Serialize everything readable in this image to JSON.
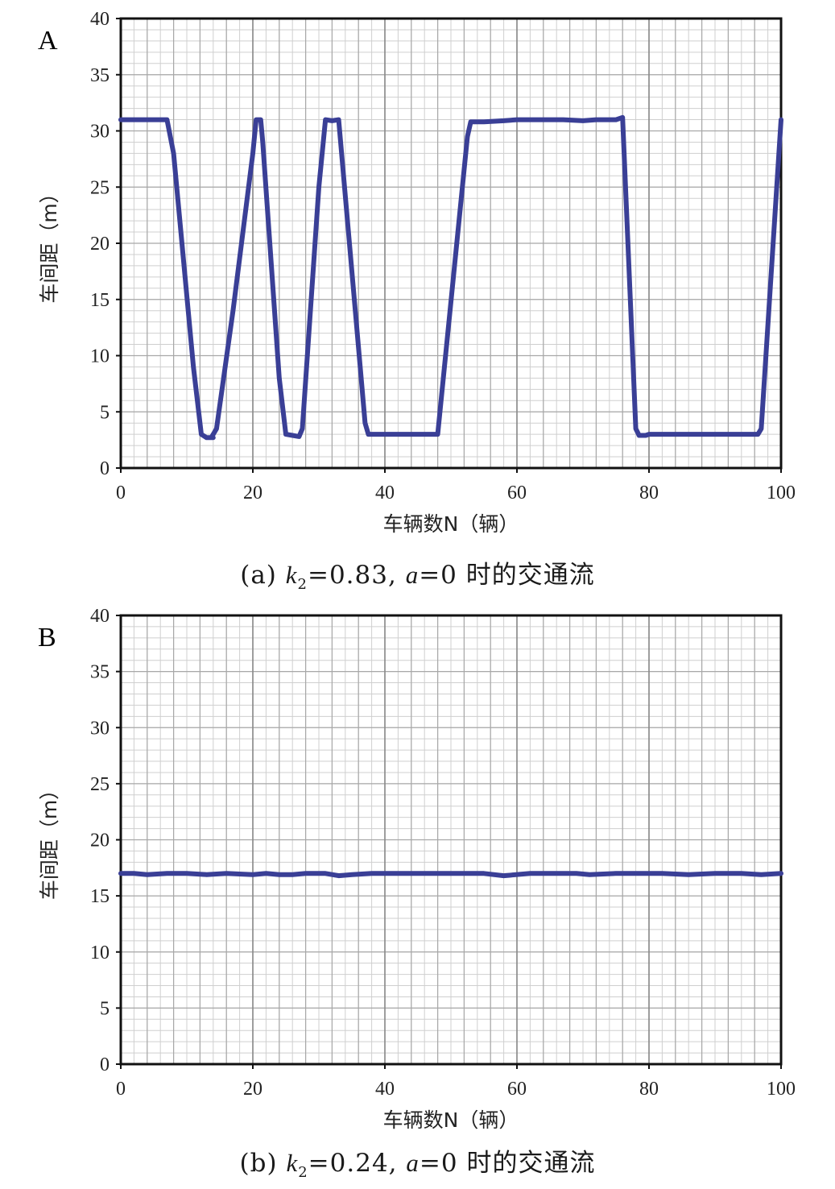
{
  "figures": [
    {
      "panel": "A",
      "caption": {
        "prefix": "(a)",
        "k_symbol": "k",
        "k_sub": "2",
        "k_value": "=0.83,",
        "a_symbol": "a",
        "a_value": "=0",
        "suffix": "时的交通流"
      }
    },
    {
      "panel": "B",
      "caption": {
        "prefix": "(b)",
        "k_symbol": "k",
        "k_sub": "2",
        "k_value": "=0.24,",
        "a_symbol": "a",
        "a_value": "=0",
        "suffix": "时的交通流"
      }
    }
  ],
  "chart_data": [
    {
      "type": "line",
      "title": "",
      "xlabel": "车辆数N（辆）",
      "ylabel": "车间距（m）",
      "xlim": [
        0,
        100
      ],
      "ylim": [
        0,
        40
      ],
      "xticks": [
        0,
        20,
        40,
        60,
        80,
        100
      ],
      "yticks": [
        0,
        5,
        10,
        15,
        20,
        25,
        30,
        35,
        40
      ],
      "grid": true,
      "color": "#3a3f96",
      "series": [
        {
          "x": [
            0,
            6.5,
            7,
            8,
            11,
            12.2,
            13,
            14,
            13.8,
            14.5,
            17,
            20,
            20.5,
            21.2,
            21.5,
            24,
            25,
            26,
            27,
            27.5,
            30,
            31,
            32,
            33,
            37,
            37.5,
            38.5,
            40,
            45,
            47,
            48,
            52.5,
            53,
            54,
            55,
            58,
            60,
            65,
            67,
            70,
            72,
            75,
            76,
            78,
            78.5,
            79.5,
            80,
            85,
            90,
            95,
            96.5,
            97,
            100
          ],
          "y": [
            31,
            31,
            31,
            28,
            9,
            3,
            2.7,
            2.7,
            2.8,
            3.5,
            14,
            28,
            31,
            31,
            29,
            8,
            3,
            2.9,
            2.8,
            3.5,
            25,
            31,
            30.9,
            31,
            4,
            3,
            3,
            3,
            3,
            3,
            3,
            29.5,
            30.8,
            30.8,
            30.8,
            30.9,
            31,
            31,
            31,
            30.9,
            31,
            31,
            31.2,
            3.5,
            2.9,
            2.9,
            3,
            3,
            3,
            3,
            3,
            3.5,
            31
          ]
        }
      ]
    },
    {
      "type": "line",
      "title": "",
      "xlabel": "车辆数N（辆）",
      "ylabel": "车间距（m）",
      "xlim": [
        0,
        100
      ],
      "ylim": [
        0,
        40
      ],
      "xticks": [
        0,
        20,
        40,
        60,
        80,
        100
      ],
      "yticks": [
        0,
        5,
        10,
        15,
        20,
        25,
        30,
        35,
        40
      ],
      "grid": true,
      "color": "#3a3f96",
      "series": [
        {
          "x": [
            0,
            2,
            4,
            7,
            10,
            13,
            16,
            20,
            22,
            24,
            26,
            28,
            31,
            33,
            35,
            38,
            45,
            55,
            58,
            62,
            66,
            69,
            71,
            75,
            82,
            86,
            90,
            94,
            97,
            100
          ],
          "y": [
            17,
            17,
            16.9,
            17,
            17,
            16.9,
            17,
            16.9,
            17,
            16.9,
            16.9,
            17,
            17,
            16.8,
            16.9,
            17,
            17,
            17,
            16.8,
            17,
            17,
            17,
            16.9,
            17,
            17,
            16.9,
            17,
            17,
            16.9,
            17
          ]
        }
      ]
    }
  ]
}
